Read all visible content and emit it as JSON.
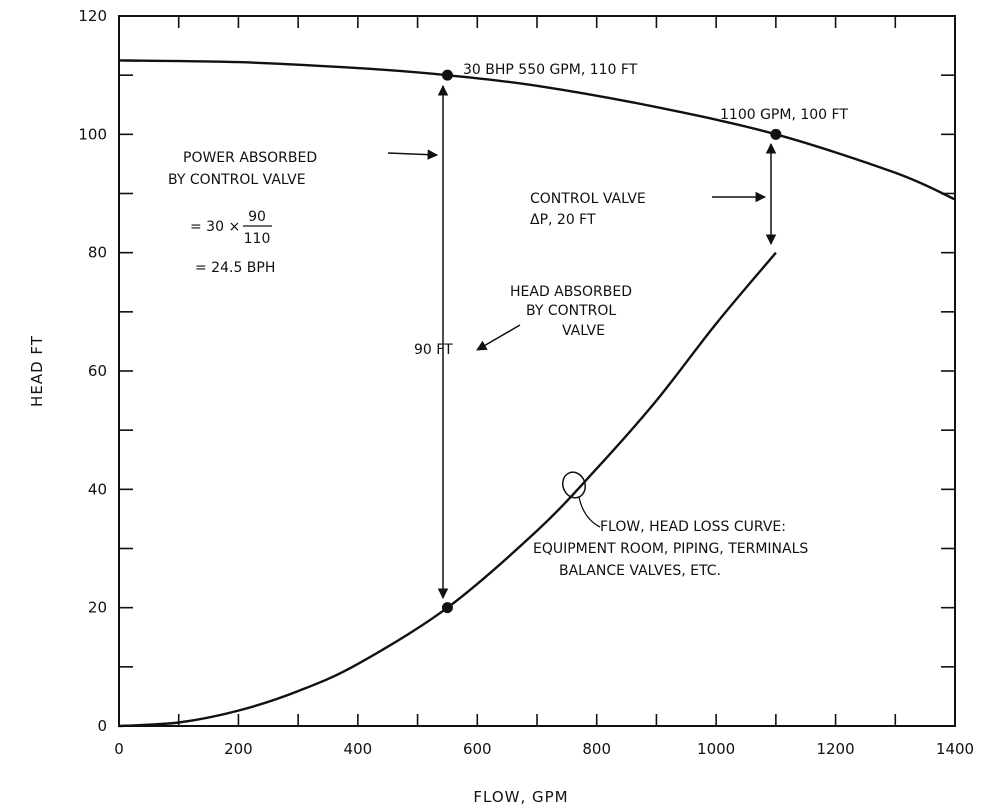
{
  "chart_data": {
    "type": "line",
    "title": "",
    "xlabel": "FLOW, GPM",
    "ylabel": "HEAD FT",
    "xlim": [
      0,
      1400
    ],
    "ylim": [
      0,
      120
    ],
    "x_ticks": [
      0,
      200,
      400,
      600,
      800,
      1000,
      1200,
      1400
    ],
    "y_ticks": [
      0,
      20,
      40,
      60,
      80,
      100,
      120
    ],
    "grid": false,
    "series": [
      {
        "points": [
          [
            0,
            112.5
          ],
          [
            200,
            112.2
          ],
          [
            400,
            111.2
          ],
          [
            550,
            110
          ],
          [
            700,
            108.2
          ],
          [
            900,
            104.6
          ],
          [
            1100,
            100
          ],
          [
            1300,
            93.5
          ],
          [
            1400,
            89
          ]
        ]
      },
      {
        "points": [
          [
            0,
            0
          ],
          [
            100,
            0.6
          ],
          [
            200,
            2.6
          ],
          [
            300,
            5.9
          ],
          [
            400,
            10.5
          ],
          [
            550,
            20
          ],
          [
            700,
            33
          ],
          [
            800,
            43.5
          ],
          [
            900,
            55
          ],
          [
            1000,
            68
          ],
          [
            1100,
            80
          ]
        ]
      }
    ],
    "markers": [
      {
        "x": 550,
        "y": 110
      },
      {
        "x": 1100,
        "y": 100
      },
      {
        "x": 550,
        "y": 20
      }
    ],
    "annotations": {
      "pump_point": "30 BHP  550 GPM, 110 FT",
      "design_point": "1100 GPM, 100 FT",
      "power_line1": "POWER ABSORBED",
      "power_line2": "BY CONTROL VALVE",
      "formula_lead": "= 30 ×",
      "formula_num": "90",
      "formula_den": "110",
      "formula_result": "= 24.5 BPH",
      "control_valve_line1": "CONTROL VALVE",
      "control_valve_line2": "ΔP, 20 FT",
      "head_absorbed_line1": "HEAD ABSORBED",
      "head_absorbed_line2": "BY CONTROL",
      "head_absorbed_line3": "VALVE",
      "ninety_ft": "90 FT",
      "curve_line1": "FLOW, HEAD LOSS CURVE:",
      "curve_line2": "EQUIPMENT ROOM, PIPING, TERMINALS",
      "curve_line3": "BALANCE VALVES, ETC."
    }
  }
}
